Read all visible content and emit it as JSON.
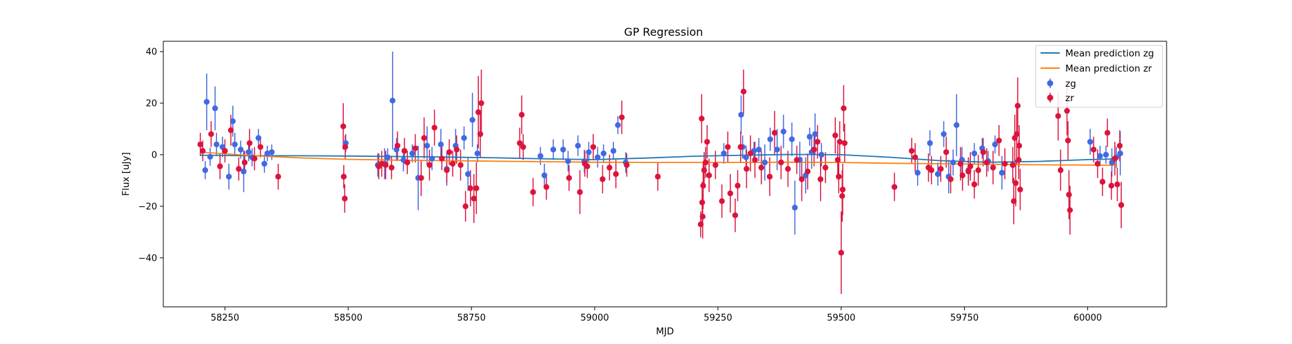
{
  "chart_data": {
    "type": "scatter",
    "title": "GP Regression",
    "xlabel": "MJD",
    "ylabel": "Flux [uJy]",
    "xlim": [
      58125,
      60160
    ],
    "ylim": [
      -59,
      44
    ],
    "xticks": [
      58250,
      58500,
      58750,
      59000,
      59250,
      59500,
      59750,
      60000
    ],
    "yticks": [
      -40,
      -20,
      0,
      20,
      40
    ],
    "ytick_labels": [
      "−40",
      "−20",
      "0",
      "20",
      "40"
    ],
    "grid": false,
    "legend": {
      "placement": "top-right",
      "entries": [
        "Mean prediction zg",
        "Mean prediction zr",
        "zg",
        "zr"
      ]
    },
    "colors": {
      "zg_line": "#1f77b4",
      "zr_line": "#ff7f0e",
      "zg_points": "#4169e1",
      "zr_points": "#dc143c"
    },
    "series": [
      {
        "name": "Mean prediction zg",
        "kind": "line",
        "x": [
          58200,
          58300,
          58400,
          58500,
          58600,
          58700,
          58800,
          58900,
          59000,
          59100,
          59200,
          59300,
          59400,
          59500,
          59600,
          59700,
          59800,
          59900,
          60000,
          60060
        ],
        "y": [
          -0.2,
          -0.4,
          -0.4,
          -0.5,
          -0.7,
          -0.9,
          -1.2,
          -1.6,
          -1.9,
          -1.3,
          -0.6,
          -0.2,
          0.1,
          0.0,
          -1.0,
          -2.3,
          -2.9,
          -2.6,
          -1.9,
          -1.6
        ]
      },
      {
        "name": "Mean prediction zr",
        "kind": "line",
        "x": [
          58200,
          58300,
          58400,
          58500,
          58600,
          58700,
          58800,
          58900,
          59000,
          59100,
          59200,
          59300,
          59400,
          59500,
          59600,
          59700,
          59800,
          59900,
          60000,
          60060
        ],
        "y": [
          1.0,
          -0.3,
          -1.2,
          -1.8,
          -2.1,
          -2.3,
          -2.5,
          -2.7,
          -2.9,
          -3.0,
          -3.0,
          -3.0,
          -2.9,
          -3.0,
          -3.3,
          -3.5,
          -3.7,
          -3.9,
          -4.0,
          -4.1
        ]
      },
      {
        "name": "zg",
        "kind": "errorbar",
        "x": [
          58210,
          58213,
          58220,
          58230,
          58233,
          58245,
          58258,
          58266,
          58270,
          58282,
          58288,
          58298,
          58305,
          58318,
          58330,
          58336,
          58345,
          58495,
          58560,
          58574,
          58580,
          58590,
          58598,
          58612,
          58630,
          58642,
          58660,
          58670,
          58688,
          58700,
          58718,
          58735,
          58743,
          58752,
          58762,
          58890,
          58898,
          58916,
          58936,
          58946,
          58966,
          58979,
          58988,
          59006,
          59018,
          59038,
          59047,
          59063,
          59262,
          59297,
          59300,
          59307,
          59323,
          59333,
          59345,
          59356,
          59370,
          59383,
          59400,
          59406,
          59416,
          59428,
          59436,
          59440,
          59447,
          59460,
          59655,
          59680,
          59696,
          59708,
          59718,
          59727,
          59734,
          59745,
          59758,
          59770,
          59786,
          59798,
          59812,
          59826,
          60005,
          60025,
          60037,
          60049,
          60058,
          60066
        ],
        "y": [
          -6.0,
          20.5,
          -0.8,
          18.0,
          4.0,
          3.0,
          -8.5,
          13.0,
          4.0,
          2.0,
          -6.5,
          1.0,
          -1.0,
          6.5,
          -3.5,
          0.5,
          1.0,
          4.5,
          -4.0,
          -3.5,
          -1.0,
          21.0,
          2.0,
          -2.0,
          0.5,
          -9.0,
          3.5,
          -1.5,
          4.0,
          -5.5,
          3.5,
          6.5,
          -7.5,
          13.5,
          0.5,
          -0.5,
          -8.0,
          2.0,
          2.0,
          -2.5,
          3.5,
          -2.5,
          1.0,
          -1.0,
          0.5,
          1.5,
          11.5,
          -3.0,
          0.5,
          15.5,
          3.0,
          -1.0,
          1.5,
          2.0,
          -3.0,
          6.0,
          2.0,
          9.0,
          6.0,
          -20.5,
          -2.0,
          -8.0,
          7.0,
          1.0,
          8.0,
          0.0,
          -7.0,
          4.5,
          -7.5,
          8.0,
          -8.5,
          -3.0,
          11.5,
          -2.0,
          -6.0,
          0.5,
          2.5,
          -2.5,
          4.0,
          -7.0,
          5.0,
          -0.5,
          0.0,
          -3.0,
          -1.0,
          0.5
        ],
        "err": [
          3.5,
          11.0,
          3.5,
          8.5,
          4.5,
          4.0,
          5.0,
          6.0,
          4.5,
          3.5,
          8.0,
          3.5,
          3.5,
          3.5,
          3.5,
          3.0,
          3.0,
          3.5,
          4.5,
          6.0,
          3.5,
          19.0,
          4.5,
          4.5,
          3.5,
          12.5,
          7.5,
          4.5,
          6.0,
          6.5,
          6.5,
          4.5,
          6.5,
          10.5,
          3.5,
          3.5,
          4.5,
          4.0,
          4.0,
          4.0,
          4.0,
          4.5,
          4.0,
          4.0,
          3.5,
          3.5,
          3.5,
          4.0,
          4.0,
          7.5,
          4.5,
          4.5,
          3.5,
          4.5,
          7.0,
          4.5,
          8.0,
          6.5,
          6.5,
          10.5,
          7.0,
          7.0,
          3.5,
          6.5,
          8.0,
          4.5,
          5.0,
          5.0,
          4.5,
          5.0,
          6.5,
          5.0,
          12.0,
          5.0,
          4.5,
          4.0,
          4.0,
          4.0,
          3.5,
          6.5,
          5.0,
          4.0,
          3.5,
          5.5,
          4.0,
          8.5
        ]
      },
      {
        "name": "zr",
        "kind": "errorbar",
        "x": [
          58200,
          58205,
          58222,
          58240,
          58250,
          58262,
          58278,
          58290,
          58300,
          58310,
          58322,
          58358,
          58490,
          58491,
          58493,
          58494,
          58562,
          58568,
          58576,
          58588,
          58600,
          58614,
          58620,
          58636,
          58648,
          58654,
          58665,
          58675,
          58690,
          58700,
          58705,
          58712,
          58720,
          58728,
          58738,
          58748,
          58755,
          58760,
          58764,
          58768,
          58770,
          58848,
          58852,
          58855,
          58875,
          58902,
          58948,
          58970,
          58980,
          58985,
          58997,
          59016,
          59030,
          59043,
          59055,
          59065,
          59128,
          59215,
          59217,
          59218,
          59219,
          59220,
          59222,
          59225,
          59228,
          59232,
          59245,
          59258,
          59270,
          59275,
          59285,
          59290,
          59296,
          59302,
          59308,
          59316,
          59325,
          59338,
          59355,
          59365,
          59378,
          59392,
          59410,
          59420,
          59432,
          59445,
          59452,
          59458,
          59468,
          59488,
          59493,
          59495,
          59497,
          59500,
          59502,
          59503,
          59505,
          59507,
          59608,
          59643,
          59650,
          59677,
          59683,
          59702,
          59713,
          59722,
          59742,
          59746,
          59758,
          59762,
          59770,
          59778,
          59788,
          59795,
          59808,
          59820,
          59832,
          59848,
          59850,
          59852,
          59854,
          59856,
          59858,
          59860,
          59861,
          59863,
          59940,
          59945,
          59958,
          59960,
          59962,
          59964,
          60012,
          60020,
          60030,
          60040,
          60048,
          60055,
          60060,
          60065,
          60068
        ],
        "y": [
          4.0,
          1.5,
          8.0,
          -4.5,
          1.5,
          9.5,
          -5.5,
          -3.0,
          4.5,
          -1.5,
          3.0,
          -8.5,
          11.0,
          -8.5,
          -17.0,
          3.0,
          -4.5,
          -3.5,
          -4.0,
          -5.0,
          3.5,
          1.5,
          -3.0,
          2.5,
          -9.0,
          6.5,
          -4.0,
          10.5,
          -1.5,
          -6.0,
          1.0,
          -3.5,
          2.0,
          -4.0,
          -20.0,
          -13.0,
          -17.0,
          -13.0,
          16.5,
          8.0,
          20.0,
          4.5,
          15.5,
          3.0,
          -14.5,
          -12.5,
          -9.0,
          -14.5,
          -3.5,
          -4.5,
          3.0,
          -9.5,
          -5.0,
          -7.5,
          14.5,
          -4.0,
          -8.5,
          -27.0,
          14.0,
          -18.5,
          -24.0,
          -12.0,
          -6.0,
          -3.0,
          5.0,
          -8.0,
          -4.0,
          -18.0,
          3.0,
          -15.0,
          -23.5,
          -12.0,
          3.0,
          24.5,
          -5.5,
          0.5,
          -2.0,
          -5.0,
          -8.5,
          8.5,
          -3.0,
          -5.5,
          -2.0,
          -9.5,
          -6.5,
          2.0,
          5.0,
          -9.5,
          -5.0,
          7.5,
          -2.0,
          -8.5,
          5.0,
          -38.0,
          -16.0,
          -13.5,
          18.0,
          4.5,
          -12.5,
          1.5,
          -1.0,
          -5.0,
          -6.0,
          -5.5,
          1.0,
          -9.5,
          -3.5,
          -8.0,
          -6.5,
          -4.5,
          -11.5,
          -6.0,
          1.0,
          -3.0,
          -5.0,
          5.5,
          -3.5,
          -4.0,
          -18.0,
          6.5,
          -11.0,
          8.0,
          19.0,
          -2.0,
          3.5,
          -13.5,
          15.0,
          -6.0,
          17.0,
          5.5,
          -15.5,
          -21.5,
          2.0,
          -3.5,
          -10.5,
          8.5,
          -12.0,
          -1.5,
          -11.5,
          3.5,
          -19.5
        ],
        "err": [
          4.5,
          4.0,
          5.0,
          5.0,
          4.5,
          6.0,
          4.5,
          4.5,
          5.5,
          4.5,
          4.0,
          5.0,
          9.0,
          4.5,
          5.5,
          4.5,
          5.0,
          5.0,
          5.5,
          4.5,
          5.5,
          5.0,
          4.5,
          5.5,
          7.0,
          8.0,
          6.0,
          7.0,
          4.5,
          5.0,
          5.0,
          5.0,
          5.5,
          6.0,
          6.0,
          7.0,
          9.5,
          10.0,
          14.0,
          9.0,
          13.0,
          6.0,
          7.5,
          5.0,
          5.5,
          5.0,
          5.0,
          8.5,
          5.0,
          4.5,
          5.0,
          5.5,
          5.0,
          5.5,
          6.5,
          4.5,
          5.5,
          5.0,
          9.5,
          8.0,
          8.5,
          9.0,
          7.0,
          6.0,
          6.5,
          6.5,
          5.5,
          6.5,
          6.0,
          7.5,
          6.5,
          6.0,
          6.0,
          8.5,
          7.5,
          7.0,
          7.0,
          6.5,
          7.5,
          8.5,
          6.5,
          7.0,
          5.5,
          8.5,
          7.0,
          6.5,
          6.5,
          8.5,
          6.0,
          7.0,
          6.0,
          6.5,
          8.0,
          16.0,
          10.0,
          10.0,
          9.0,
          7.5,
          5.5,
          5.0,
          5.5,
          5.5,
          5.5,
          5.0,
          6.0,
          5.5,
          6.5,
          6.0,
          5.5,
          5.5,
          5.5,
          6.0,
          5.5,
          5.5,
          6.5,
          6.0,
          6.0,
          7.0,
          9.0,
          9.0,
          9.0,
          12.0,
          11.0,
          7.5,
          8.0,
          8.0,
          9.5,
          8.0,
          9.5,
          7.5,
          9.5,
          9.5,
          5.0,
          5.5,
          5.5,
          5.5,
          5.5,
          6.5,
          6.5,
          6.0,
          9.0
        ]
      }
    ]
  }
}
